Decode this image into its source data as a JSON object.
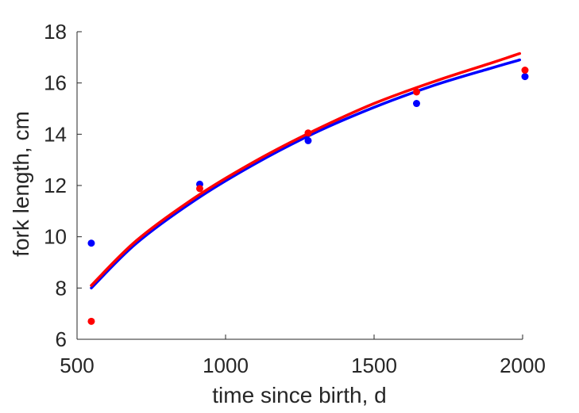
{
  "chart_data": {
    "type": "scatter",
    "xlabel": "time since birth, d",
    "ylabel": "fork length, cm",
    "xlim": [
      500,
      2000
    ],
    "ylim": [
      6,
      18
    ],
    "xticks": [
      500,
      1000,
      1500,
      2000
    ],
    "yticks": [
      6,
      8,
      10,
      12,
      14,
      16,
      18
    ],
    "xtick_labels": [
      "500",
      "1000",
      "1500",
      "2000"
    ],
    "ytick_labels": [
      "6",
      "8",
      "10",
      "12",
      "14",
      "16",
      "18"
    ],
    "grid": false,
    "legend": "none",
    "series": [
      {
        "color": "#0000ff",
        "points": {
          "x": [
            548,
            913,
            1278,
            1643,
            2008
          ],
          "y": [
            9.75,
            12.05,
            13.75,
            15.2,
            16.25
          ]
        },
        "fit_curve": {
          "x": [
            548,
            700,
            900,
            1100,
            1300,
            1500,
            1700,
            1900,
            1990
          ],
          "y": [
            8.0,
            9.75,
            11.45,
            12.85,
            14.05,
            15.05,
            15.9,
            16.6,
            16.9
          ]
        }
      },
      {
        "color": "#ff0000",
        "points": {
          "x": [
            548,
            913,
            1278,
            1643,
            2008
          ],
          "y": [
            6.7,
            11.88,
            14.05,
            15.65,
            16.5
          ]
        },
        "fit_curve": {
          "x": [
            548,
            700,
            900,
            1100,
            1300,
            1500,
            1700,
            1900,
            1990
          ],
          "y": [
            8.1,
            9.85,
            11.55,
            12.95,
            14.15,
            15.2,
            16.05,
            16.8,
            17.15
          ]
        }
      }
    ]
  }
}
